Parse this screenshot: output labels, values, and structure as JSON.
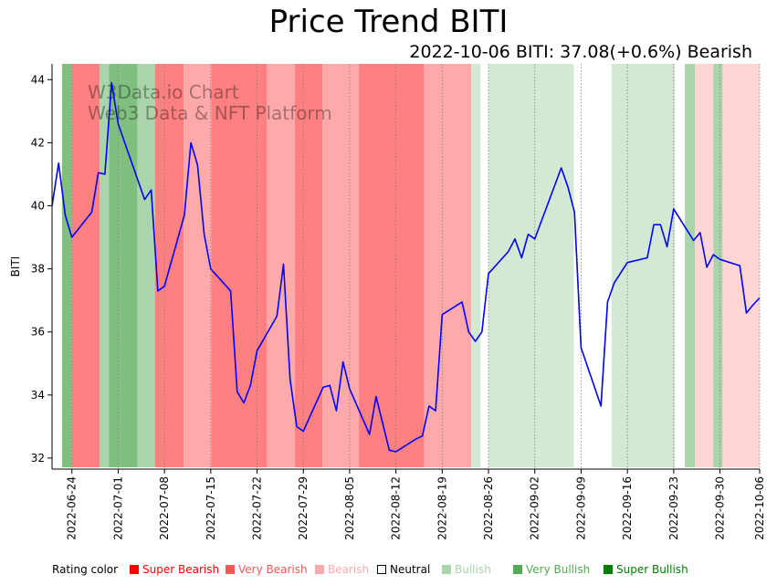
{
  "chart_data": {
    "type": "line",
    "title": "Price Trend BITI",
    "subtitle": "2022-10-06 BITI: 37.08(+0.6%) Bearish",
    "xlabel": "",
    "ylabel": "BITI",
    "ylim": [
      31.65,
      44.5
    ],
    "xlim": [
      "2022-06-21",
      "2022-10-06"
    ],
    "yticks": [
      32,
      34,
      36,
      38,
      40,
      42,
      44
    ],
    "xticks": [
      "2022-06-24",
      "2022-07-01",
      "2022-07-08",
      "2022-07-15",
      "2022-07-22",
      "2022-07-29",
      "2022-08-05",
      "2022-08-12",
      "2022-08-19",
      "2022-08-26",
      "2022-09-02",
      "2022-09-09",
      "2022-09-16",
      "2022-09-23",
      "2022-09-30",
      "2022-10-06"
    ],
    "grid": "vertical dotted at x ticks",
    "line_color": "#0000ff",
    "watermark": [
      "W3Data.io Chart",
      "Web3 Data & NFT Platform"
    ],
    "series": [
      {
        "name": "BITI",
        "x": [
          "2022-06-21",
          "2022-06-22",
          "2022-06-23",
          "2022-06-24",
          "2022-06-27",
          "2022-06-28",
          "2022-06-29",
          "2022-06-30",
          "2022-07-01",
          "2022-07-05",
          "2022-07-06",
          "2022-07-07",
          "2022-07-08",
          "2022-07-11",
          "2022-07-12",
          "2022-07-13",
          "2022-07-14",
          "2022-07-15",
          "2022-07-18",
          "2022-07-19",
          "2022-07-20",
          "2022-07-21",
          "2022-07-22",
          "2022-07-25",
          "2022-07-26",
          "2022-07-27",
          "2022-07-28",
          "2022-07-29",
          "2022-08-01",
          "2022-08-02",
          "2022-08-03",
          "2022-08-04",
          "2022-08-05",
          "2022-08-08",
          "2022-08-09",
          "2022-08-11",
          "2022-08-12",
          "2022-08-15",
          "2022-08-16",
          "2022-08-17",
          "2022-08-18",
          "2022-08-19",
          "2022-08-22",
          "2022-08-23",
          "2022-08-24",
          "2022-08-25",
          "2022-08-26",
          "2022-08-29",
          "2022-08-30",
          "2022-08-31",
          "2022-09-01",
          "2022-09-02",
          "2022-09-06",
          "2022-09-07",
          "2022-09-08",
          "2022-09-09",
          "2022-09-12",
          "2022-09-13",
          "2022-09-14",
          "2022-09-16",
          "2022-09-19",
          "2022-09-20",
          "2022-09-21",
          "2022-09-22",
          "2022-09-23",
          "2022-09-26",
          "2022-09-27",
          "2022-09-28",
          "2022-09-29",
          "2022-09-30",
          "2022-10-03",
          "2022-10-04",
          "2022-10-05",
          "2022-10-06"
        ],
        "values": [
          40.0,
          41.35,
          39.7,
          39.0,
          39.8,
          41.05,
          41.0,
          43.9,
          42.6,
          40.2,
          40.5,
          37.3,
          37.45,
          39.7,
          42.0,
          41.3,
          39.1,
          38.0,
          37.3,
          34.1,
          33.75,
          34.3,
          35.4,
          36.5,
          38.15,
          34.5,
          33.0,
          32.85,
          34.25,
          34.3,
          33.5,
          35.05,
          34.2,
          32.75,
          33.95,
          32.25,
          32.2,
          32.6,
          32.7,
          33.65,
          33.5,
          36.55,
          36.95,
          36.0,
          35.7,
          36.0,
          37.85,
          38.55,
          38.95,
          38.35,
          39.1,
          38.95,
          41.2,
          40.6,
          39.8,
          35.5,
          33.65,
          36.95,
          37.55,
          38.2,
          38.35,
          39.4,
          39.4,
          38.7,
          39.9,
          38.9,
          39.15,
          38.05,
          38.45,
          38.3,
          38.1,
          36.6,
          36.86,
          37.08
        ]
      }
    ],
    "rating_bands": [
      {
        "start": "2022-06-22.5",
        "end": "2022-06-24",
        "rating": "Very Bullish"
      },
      {
        "start": "2022-06-24",
        "end": "2022-06-28.2",
        "rating": "Very Bearish"
      },
      {
        "start": "2022-06-28.2",
        "end": "2022-06-29.6",
        "rating": "Bullish"
      },
      {
        "start": "2022-06-29.6",
        "end": "2022-07-03.9",
        "rating": "Very Bullish"
      },
      {
        "start": "2022-07-03.9",
        "end": "2022-07-06.6",
        "rating": "Bullish"
      },
      {
        "start": "2022-07-06.6",
        "end": "2022-07-10.9",
        "rating": "Very Bearish"
      },
      {
        "start": "2022-07-10.9",
        "end": "2022-07-15.1",
        "rating": "Bearish"
      },
      {
        "start": "2022-07-15.1",
        "end": "2022-07-23.5",
        "rating": "Very Bearish"
      },
      {
        "start": "2022-07-23.5",
        "end": "2022-07-27.7",
        "rating": "Bearish"
      },
      {
        "start": "2022-07-27.7",
        "end": "2022-07-31.9",
        "rating": "Very Bearish"
      },
      {
        "start": "2022-07-31.9",
        "end": "2022-08-06.4",
        "rating": "Bearish"
      },
      {
        "start": "2022-08-06.4",
        "end": "2022-08-16.3",
        "rating": "Very Bearish"
      },
      {
        "start": "2022-08-16.3",
        "end": "2022-08-23.4",
        "rating": "Bearish"
      },
      {
        "start": "2022-08-23.4",
        "end": "2022-08-24.8",
        "rating": "Bullish (faint)"
      },
      {
        "start": "2022-08-24.8",
        "end": "2022-08-26",
        "rating": "Neutral"
      },
      {
        "start": "2022-08-26",
        "end": "2022-09-07.9",
        "rating": "Bullish (faint)"
      },
      {
        "start": "2022-09-07.9",
        "end": "2022-09-13.6",
        "rating": "Neutral"
      },
      {
        "start": "2022-09-13.6",
        "end": "2022-09-23.2",
        "rating": "Bullish (faint)"
      },
      {
        "start": "2022-09-23.2",
        "end": "2022-09-24.7",
        "rating": "Neutral"
      },
      {
        "start": "2022-09-24.7",
        "end": "2022-09-26.2",
        "rating": "Bullish"
      },
      {
        "start": "2022-09-26.2",
        "end": "2022-09-29",
        "rating": "Bearish (faint)"
      },
      {
        "start": "2022-09-29",
        "end": "2022-09-30.4",
        "rating": "Bullish"
      },
      {
        "start": "2022-09-30.4",
        "end": "2022-10-06",
        "rating": "Bearish (faint)"
      }
    ],
    "band_colors": {
      "Very Bullish": "#80bf80",
      "Bullish": "#aad5aa",
      "Bullish (faint)": "#d4e9d4",
      "Neutral": "#ffffff",
      "Bearish (faint)": "#ffd5d5",
      "Bearish": "#ffaaaa",
      "Very Bearish": "#ff8080"
    },
    "legend": {
      "title": "Rating color",
      "placement": "bottom",
      "items": [
        {
          "label": "Super Bearish",
          "color": "#ff0000",
          "text_color": "#ff0000",
          "filled": true
        },
        {
          "label": "Very Bearish",
          "color": "#ff5555",
          "text_color": "#ff5555",
          "filled": true
        },
        {
          "label": "Bearish",
          "color": "#ffaaaa",
          "text_color": "#ffaaaa",
          "filled": true
        },
        {
          "label": "Neutral",
          "color": "#ffffff",
          "text_color": "#000000",
          "filled": false
        },
        {
          "label": "Bullish",
          "color": "#aad5aa",
          "text_color": "#aad5aa",
          "filled": true
        },
        {
          "label": "Very Bullish",
          "color": "#55aa55",
          "text_color": "#55aa55",
          "filled": true
        },
        {
          "label": "Super Bullish",
          "color": "#008000",
          "text_color": "#008000",
          "filled": true
        }
      ]
    }
  }
}
